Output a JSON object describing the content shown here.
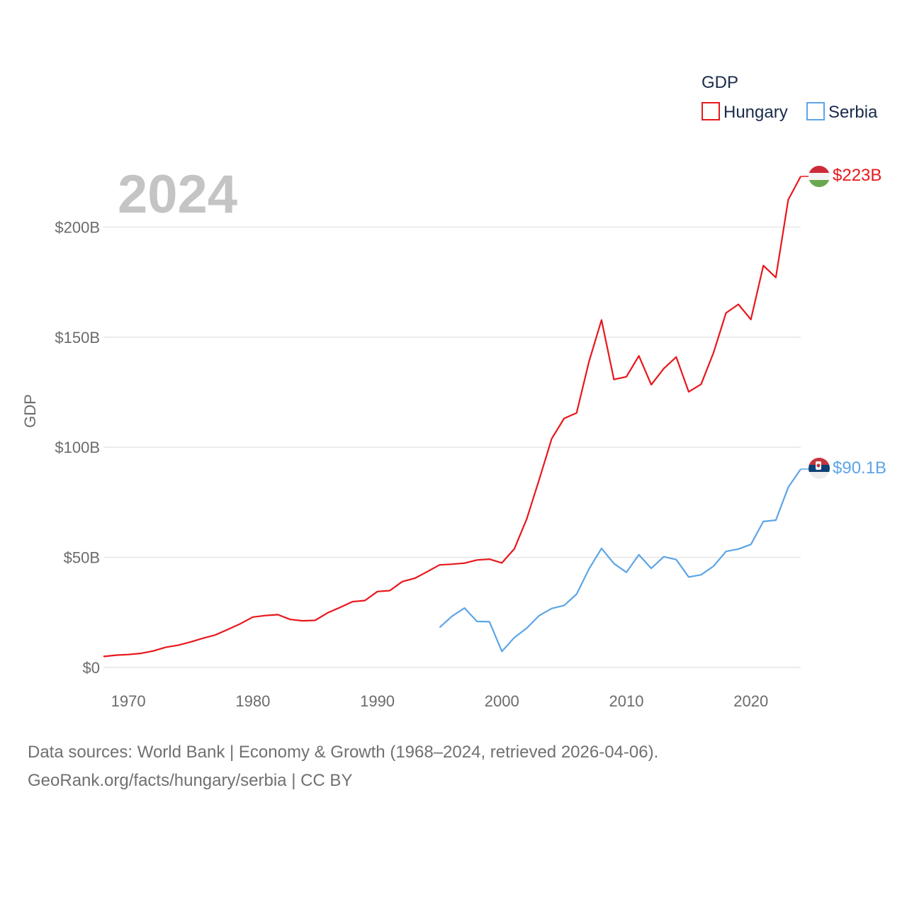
{
  "chart_data": {
    "type": "line",
    "title": "",
    "xlabel": "",
    "ylabel": "GDP",
    "year_label": "2024",
    "legend_title": "GDP",
    "xlim": [
      1968,
      2024
    ],
    "ylim": [
      0,
      223
    ],
    "x_ticks": [
      1970,
      1980,
      1990,
      2000,
      2010,
      2020
    ],
    "y_ticks": [
      0,
      50,
      100,
      150,
      200
    ],
    "y_tick_labels": [
      "$0",
      "$50B",
      "$100B",
      "$150B",
      "$200B"
    ],
    "series": [
      {
        "name": "Hungary",
        "color": "#e8171c",
        "end_label": "$223B",
        "x": [
          1968,
          1969,
          1970,
          1971,
          1972,
          1973,
          1974,
          1975,
          1976,
          1977,
          1978,
          1979,
          1980,
          1981,
          1982,
          1983,
          1984,
          1985,
          1986,
          1987,
          1988,
          1989,
          1990,
          1991,
          1992,
          1993,
          1994,
          1995,
          1996,
          1997,
          1998,
          1999,
          2000,
          2001,
          2002,
          2003,
          2004,
          2005,
          2006,
          2007,
          2008,
          2009,
          2010,
          2011,
          2012,
          2013,
          2014,
          2015,
          2016,
          2017,
          2018,
          2019,
          2020,
          2021,
          2022,
          2023,
          2024
        ],
        "values": [
          5,
          5.6,
          5.9,
          6.4,
          7.5,
          9.2,
          10.1,
          11.6,
          13.3,
          14.8,
          17.3,
          19.9,
          22.9,
          23.6,
          24,
          21.8,
          21.2,
          21.4,
          24.8,
          27.3,
          29.9,
          30.4,
          34.5,
          34.9,
          39,
          40.5,
          43.5,
          46.6,
          46.9,
          47.4,
          48.8,
          49.2,
          47.5,
          53.9,
          67.5,
          85.4,
          103.9,
          113.1,
          115.6,
          139,
          157.8,
          130.8,
          132,
          141.5,
          128.4,
          135.7,
          141,
          125.2,
          128.6,
          143,
          161,
          164.9,
          158,
          182.5,
          177.1,
          212.4,
          223
        ]
      },
      {
        "name": "Serbia",
        "color": "#5da5e6",
        "end_label": "$90.1B",
        "x": [
          1995,
          1996,
          1997,
          1998,
          1999,
          2000,
          2001,
          2002,
          2003,
          2004,
          2005,
          2006,
          2007,
          2008,
          2009,
          2010,
          2011,
          2012,
          2013,
          2014,
          2015,
          2016,
          2017,
          2018,
          2019,
          2020,
          2021,
          2022,
          2023,
          2024
        ],
        "values": [
          18.2,
          23.3,
          27,
          20.9,
          20.8,
          7.3,
          13.6,
          17.9,
          23.6,
          26.8,
          28.2,
          33.3,
          44.8,
          54.1,
          47.2,
          43.2,
          51.2,
          45,
          50.3,
          49,
          41.1,
          42.1,
          46,
          52.7,
          53.8,
          55.9,
          66.3,
          66.9,
          81.8,
          90.1
        ]
      }
    ]
  },
  "footer": {
    "line1": "Data sources: World Bank | Economy & Growth (1968–2024, retrieved 2026-04-06).",
    "line2": "GeoRank.org/facts/hungary/serbia | CC BY"
  }
}
